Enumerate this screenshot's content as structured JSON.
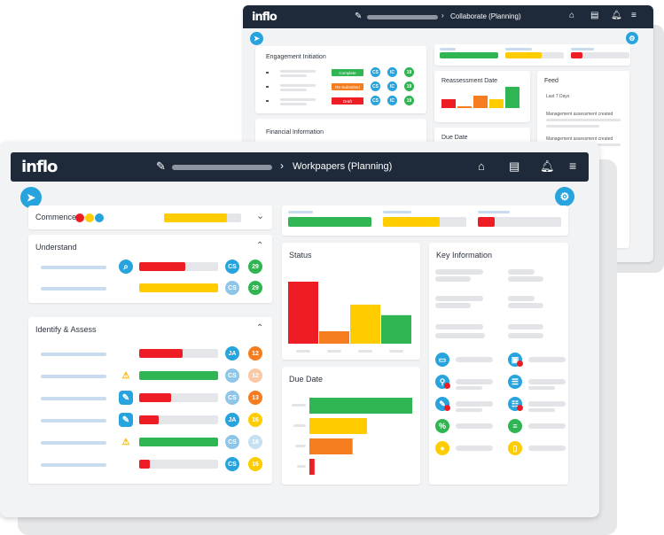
{
  "back_window": {
    "logo": "inflo",
    "breadcrumb_title": "Collaborate (Planning)",
    "engagement": {
      "title": "Engagement Initiation",
      "rows": [
        {
          "status": "Complete",
          "color": "#2fb551",
          "badge": "CS",
          "badge2": "IC",
          "day": "19"
        },
        {
          "status": "Re-Submitted",
          "color": "#f57c1f",
          "badge": "CS",
          "badge2": "IC",
          "day": "19"
        },
        {
          "status": "Draft",
          "color": "#ee1c25",
          "badge": "CS",
          "badge2": "IC",
          "day": "19"
        }
      ]
    },
    "financial_title": "Financial Information",
    "reassessment_title": "Reassessment Date",
    "due_title": "Due Date",
    "feed": {
      "title": "Feed",
      "subtitle": "Last 7 Days",
      "items": [
        "Management assessment created",
        "Management assessment created"
      ]
    }
  },
  "front_window": {
    "logo": "inflo",
    "breadcrumb_title": "Workpapers (Planning)",
    "commence": {
      "title": "Commence",
      "progress": 0.82,
      "dots": [
        "#ee1c25",
        "#ffcc00",
        "#27a3dd"
      ]
    },
    "understand": {
      "title": "Understand",
      "rows": [
        {
          "progress": 0.58,
          "color": "#ee1c25",
          "icon": "search-icon",
          "badge": "CS",
          "day": "29",
          "badge_color": "#27a3dd",
          "day_color": "#2fb551"
        },
        {
          "progress": 1.0,
          "color": "#ffcc00",
          "icon": "",
          "badge": "CS",
          "day": "29",
          "badge_color": "#8fc6e8",
          "day_color": "#2fb551"
        }
      ]
    },
    "identify": {
      "title": "Identify & Assess",
      "rows": [
        {
          "progress": 0.55,
          "color": "#ee1c25",
          "icon": "",
          "badge": "JA",
          "day": "12",
          "badge_color": "#27a3dd",
          "day_color": "#f57c1f"
        },
        {
          "progress": 1.0,
          "color": "#2fb551",
          "icon": "warning-icon",
          "badge": "CS",
          "day": "12",
          "badge_color": "#8fc6e8",
          "day_color": "#f9c9a6"
        },
        {
          "progress": 0.4,
          "color": "#ee1c25",
          "icon": "note-icon",
          "badge": "CS",
          "day": "13",
          "badge_color": "#8fc6e8",
          "day_color": "#f57c1f"
        },
        {
          "progress": 0.25,
          "color": "#ee1c25",
          "icon": "note-icon",
          "badge": "JA",
          "day": "16",
          "badge_color": "#27a3dd",
          "day_color": "#ffcc00"
        },
        {
          "progress": 1.0,
          "color": "#2fb551",
          "icon": "warning-icon",
          "badge": "CS",
          "day": "16",
          "badge_color": "#8fc6e8",
          "day_color": "#c6e0f2"
        },
        {
          "progress": 0.13,
          "color": "#ee1c25",
          "icon": "",
          "badge": "CS",
          "day": "16",
          "badge_color": "#27a3dd",
          "day_color": "#ffcc00"
        }
      ]
    },
    "summary_bars": [
      {
        "color": "#2fb551",
        "value": 1.0
      },
      {
        "color": "#ffcc00",
        "value": 0.68
      },
      {
        "color": "#ee1c25",
        "value": 0.2
      }
    ],
    "status": {
      "title": "Status",
      "values": [
        1.0,
        0.2,
        0.63,
        0.46
      ],
      "colors": [
        "#ee1c25",
        "#f57c1f",
        "#ffcc00",
        "#2fb551"
      ]
    },
    "due_date": {
      "title": "Due Date",
      "values": [
        1.0,
        0.56,
        0.42,
        0.05
      ],
      "colors": [
        "#2fb551",
        "#ffcc00",
        "#f57c1f",
        "#ee1c25"
      ]
    },
    "key_information": {
      "title": "Key Information",
      "icons": [
        {
          "name": "id-card-icon",
          "color": "#27a3dd",
          "alert": false
        },
        {
          "name": "inbox-icon",
          "color": "#27a3dd",
          "alert": true
        },
        {
          "name": "pin-icon",
          "color": "#27a3dd",
          "alert": true
        },
        {
          "name": "database-icon",
          "color": "#27a3dd",
          "alert": false
        },
        {
          "name": "note-icon",
          "color": "#27a3dd",
          "alert": true
        },
        {
          "name": "list-icon",
          "color": "#27a3dd",
          "alert": true
        },
        {
          "name": "percent-icon",
          "color": "#2fb551",
          "alert": false
        },
        {
          "name": "sliders-icon",
          "color": "#2fb551",
          "alert": false
        },
        {
          "name": "chat-icon",
          "color": "#ffcc00",
          "alert": false
        },
        {
          "name": "document-icon",
          "color": "#ffcc00",
          "alert": false
        }
      ]
    }
  }
}
